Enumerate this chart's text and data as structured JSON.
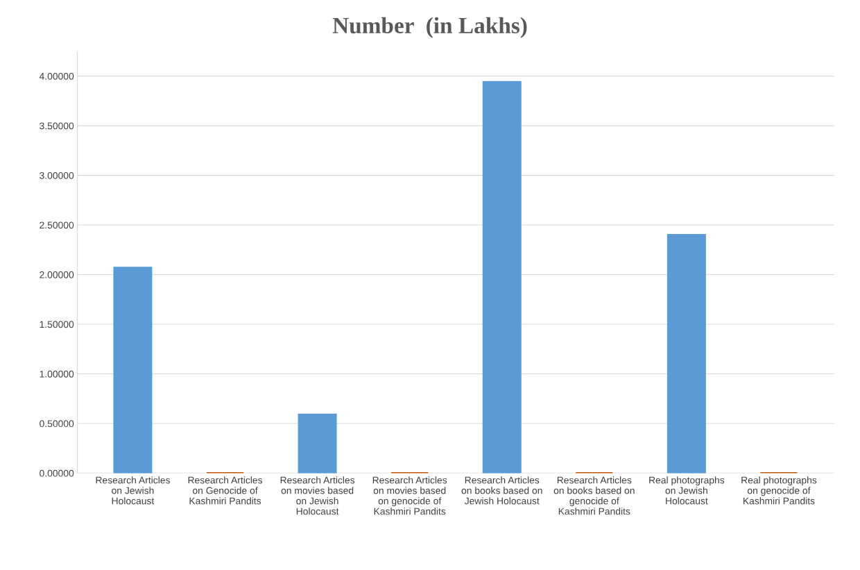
{
  "chart_data": {
    "type": "bar",
    "title": "Number  (in Lakhs)",
    "categories": [
      "Research Articles\non Jewish\nHolocaust",
      "Research Articles\non Genocide of\nKashmiri Pandits",
      "Research Articles\non movies based\non Jewish\nHolocaust",
      "Research Articles\non movies based\non genocide of\nKashmiri Pandits",
      "Research Articles\non books based on\nJewish Holocaust",
      "Research Articles\non books based on\ngenocide of\nKashmiri Pandits",
      "Real photographs\non Jewish\nHolocaust",
      "Real photographs\non genocide of\nKashmiri Pandits"
    ],
    "values": [
      2.07,
      0,
      0.59,
      0,
      3.94,
      0,
      2.4,
      0
    ],
    "colors": [
      "#5b9bd5",
      "#c55a11",
      "#5b9bd5",
      "#c55a11",
      "#5b9bd5",
      "#c55a11",
      "#5b9bd5",
      "#c55a11"
    ],
    "ylim": [
      0,
      4.25
    ],
    "yticks": [
      {
        "value": 0,
        "label": "0.00000"
      },
      {
        "value": 0.5,
        "label": "0.50000"
      },
      {
        "value": 1,
        "label": "1.00000"
      },
      {
        "value": 1.5,
        "label": "1.50000"
      },
      {
        "value": 2,
        "label": "2.00000"
      },
      {
        "value": 2.5,
        "label": "2.50000"
      },
      {
        "value": 3,
        "label": "3.00000"
      },
      {
        "value": 3.5,
        "label": "3.50000"
      },
      {
        "value": 4,
        "label": "4.00000"
      }
    ],
    "grid": "y",
    "legend": false
  }
}
